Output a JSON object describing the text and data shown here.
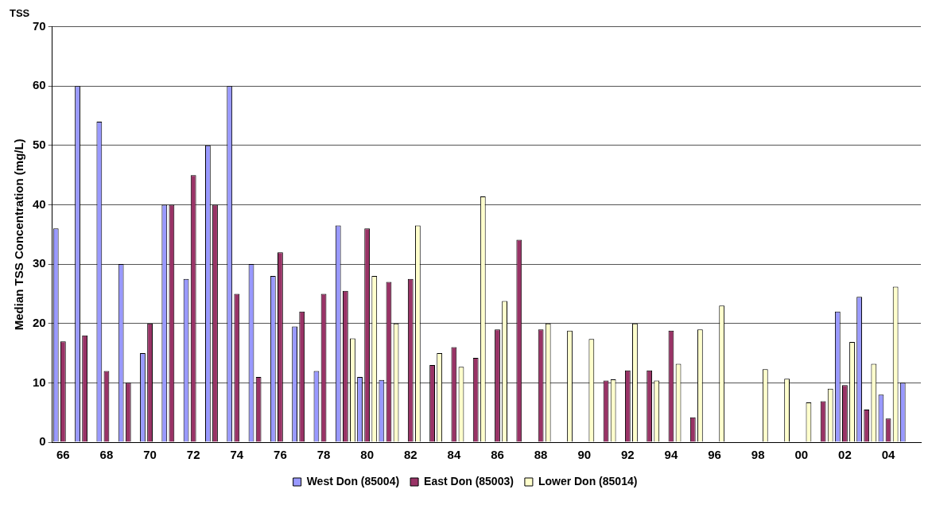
{
  "chart_data": {
    "type": "bar",
    "title": "TSS",
    "ylabel": "Median TSS Concentration (mg/L)",
    "categories": [
      "66",
      null,
      "68",
      null,
      "70",
      null,
      "72",
      null,
      "74",
      null,
      "76",
      null,
      "78",
      null,
      "80",
      null,
      "82",
      null,
      "84",
      null,
      "86",
      null,
      "88",
      null,
      "90",
      null,
      "92",
      null,
      "94",
      null,
      "96",
      null,
      "98",
      null,
      "00",
      null,
      "02",
      null,
      "04",
      null
    ],
    "series": [
      {
        "name": "West Don (85004)",
        "color": "#9999ff",
        "values": [
          36,
          60,
          54,
          30,
          15,
          40,
          27.5,
          50,
          60,
          30,
          28,
          19.5,
          12,
          36.5,
          11,
          10.5,
          null,
          null,
          null,
          null,
          null,
          null,
          null,
          null,
          null,
          null,
          null,
          null,
          null,
          null,
          null,
          null,
          null,
          null,
          null,
          null,
          22,
          24.5,
          8,
          10
        ]
      },
      {
        "name": "East Don (85003)",
        "color": "#993366",
        "values": [
          17,
          18,
          12,
          10,
          20,
          40,
          45,
          40,
          25,
          11,
          32,
          22,
          25,
          25.5,
          36,
          27,
          27.5,
          13,
          16,
          14.2,
          19,
          34.1,
          19,
          null,
          null,
          10.4,
          12.1,
          12.1,
          18.8,
          4.2,
          null,
          null,
          null,
          null,
          null,
          6.9,
          9.6,
          5.5,
          4,
          null
        ]
      },
      {
        "name": "Lower Don (85014)",
        "color": "#ffffcc",
        "values": [
          null,
          null,
          null,
          null,
          null,
          null,
          null,
          null,
          null,
          null,
          null,
          null,
          null,
          17.5,
          28,
          20,
          36.5,
          15,
          12.7,
          41.4,
          23.8,
          null,
          20,
          18.8,
          17.4,
          10.6,
          20,
          10.4,
          13.2,
          19,
          23,
          null,
          12.3,
          10.7,
          6.7,
          9,
          16.9,
          13.2,
          26.2,
          null
        ]
      }
    ],
    "ylim": [
      0,
      70
    ],
    "yticks": [
      0,
      10,
      20,
      30,
      40,
      50,
      60,
      70
    ],
    "grid": "y",
    "legend": "bottom"
  }
}
